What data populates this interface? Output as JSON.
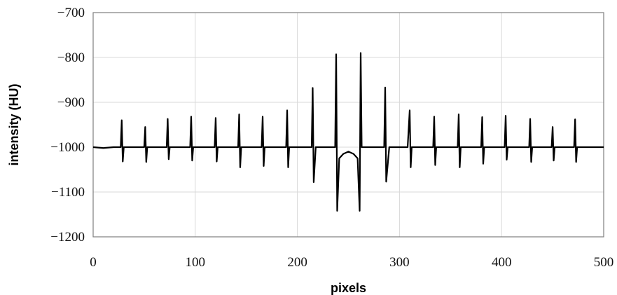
{
  "chart_data": {
    "type": "line",
    "title": "",
    "xlabel": "pixels",
    "ylabel": "intensity (HU)",
    "xlim": [
      0,
      500
    ],
    "ylim": [
      -1200,
      -700
    ],
    "x_ticks": [
      0,
      100,
      200,
      300,
      400,
      500
    ],
    "y_ticks": [
      -700,
      -800,
      -900,
      -1000,
      -1100,
      -1200
    ],
    "x_tick_labels": [
      "0",
      "100",
      "200",
      "300",
      "400",
      "500"
    ],
    "y_tick_labels": [
      "−700",
      "−800",
      "−900",
      "−1000",
      "−1100",
      "−1200"
    ],
    "grid": true,
    "line_color": "#000000",
    "grid_color": "#d9d9d9",
    "baseline": -1000,
    "series": [
      {
        "x": [
          0,
          10,
          20,
          27,
          28,
          29,
          30,
          35,
          45,
          50,
          51,
          52,
          53,
          60,
          68,
          72,
          73,
          74,
          75,
          80,
          90,
          95,
          96,
          97,
          98,
          105,
          115,
          119,
          120,
          121,
          122,
          130,
          138,
          142,
          143,
          144,
          145,
          152,
          160,
          165,
          166,
          167,
          168,
          175,
          185,
          189,
          190,
          191,
          192,
          200,
          210,
          214,
          215,
          216,
          218,
          225,
          233,
          237,
          238,
          239,
          241,
          245,
          250,
          255,
          259,
          261,
          262,
          263,
          270,
          282,
          285,
          286,
          287,
          290,
          300,
          308,
          310,
          311,
          312,
          320,
          330,
          333,
          334,
          335,
          336,
          345,
          355,
          357,
          358,
          359,
          360,
          368,
          378,
          380,
          381,
          382,
          383,
          390,
          400,
          403,
          404,
          405,
          406,
          415,
          423,
          427,
          428,
          429,
          430,
          440,
          446,
          449,
          450,
          451,
          452,
          460,
          468,
          471,
          472,
          473,
          474,
          480,
          490,
          500
        ],
        "y": [
          -1000,
          -1002,
          -1000,
          -1000,
          -940,
          -1032,
          -1000,
          -1000,
          -1000,
          -1000,
          -955,
          -1033,
          -1000,
          -1000,
          -1000,
          -1000,
          -937,
          -1027,
          -1000,
          -1000,
          -1000,
          -1000,
          -932,
          -1030,
          -1000,
          -1000,
          -1000,
          -1000,
          -935,
          -1032,
          -1000,
          -1000,
          -1000,
          -1000,
          -927,
          -1045,
          -1000,
          -1000,
          -1000,
          -1000,
          -932,
          -1042,
          -1000,
          -1000,
          -1000,
          -1000,
          -918,
          -1045,
          -1000,
          -1000,
          -1000,
          -1000,
          -868,
          -1078,
          -1000,
          -1000,
          -1000,
          -1000,
          -793,
          -1142,
          -1025,
          -1015,
          -1010,
          -1015,
          -1025,
          -1142,
          -790,
          -1000,
          -1000,
          -1000,
          -1000,
          -867,
          -1077,
          -1000,
          -1000,
          -1000,
          -918,
          -1045,
          -1000,
          -1000,
          -1000,
          -1000,
          -932,
          -1040,
          -1000,
          -1000,
          -1000,
          -1000,
          -927,
          -1045,
          -1000,
          -1000,
          -1000,
          -1000,
          -933,
          -1037,
          -1000,
          -1000,
          -1000,
          -1000,
          -930,
          -1028,
          -1000,
          -1000,
          -1000,
          -1000,
          -937,
          -1033,
          -1000,
          -1000,
          -1000,
          -1000,
          -955,
          -1030,
          -1000,
          -1000,
          -1000,
          -1000,
          -938,
          -1033,
          -1000,
          -1000,
          -1000,
          -1000
        ]
      }
    ]
  }
}
